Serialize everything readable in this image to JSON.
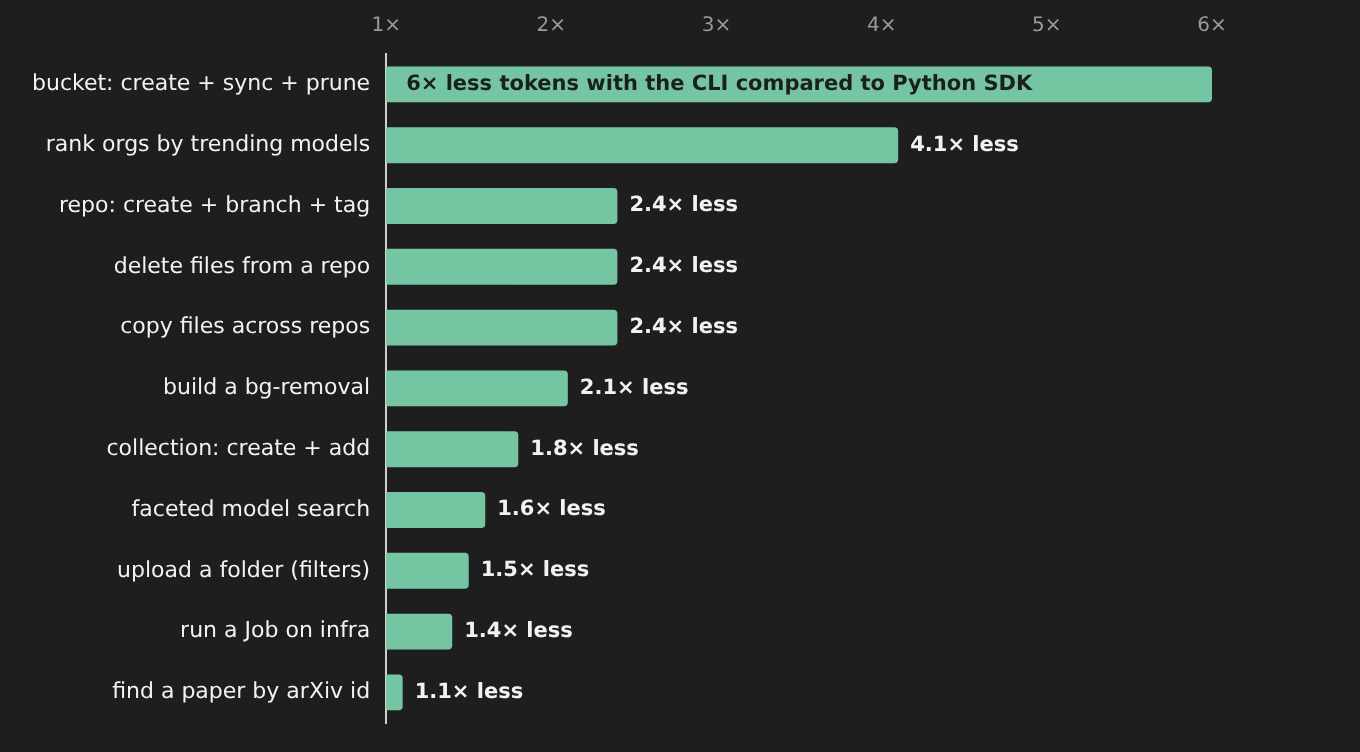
{
  "chart_data": {
    "type": "bar",
    "orientation": "horizontal",
    "categories": [
      "bucket: create + sync + prune",
      "rank orgs by trending models",
      "repo: create + branch + tag",
      "delete files from a repo",
      "copy files across repos",
      "build a bg-removal",
      "collection: create + add",
      "faceted model search",
      "upload a folder (filters)",
      "run a Job on infra",
      "find a paper by arXiv id"
    ],
    "values": [
      6,
      4.1,
      2.4,
      2.4,
      2.4,
      2.1,
      1.8,
      1.6,
      1.5,
      1.4,
      1.1
    ],
    "value_labels": [
      "6× less tokens with the CLI compared to Python SDK",
      "4.1× less",
      "2.4× less",
      "2.4× less",
      "2.4× less",
      "2.1× less",
      "1.8× less",
      "1.6× less",
      "1.5× less",
      "1.4× less",
      "1.1× less"
    ],
    "color": "#74c5a2",
    "xlim": [
      1,
      6
    ],
    "xticks": [
      {
        "value": 1,
        "label": "1×"
      },
      {
        "value": 2,
        "label": "2×"
      },
      {
        "value": 3,
        "label": "3×"
      },
      {
        "value": 4,
        "label": "4×"
      },
      {
        "value": 5,
        "label": "5×"
      },
      {
        "value": 6,
        "label": "6×"
      }
    ],
    "grid": false,
    "legend": false
  }
}
